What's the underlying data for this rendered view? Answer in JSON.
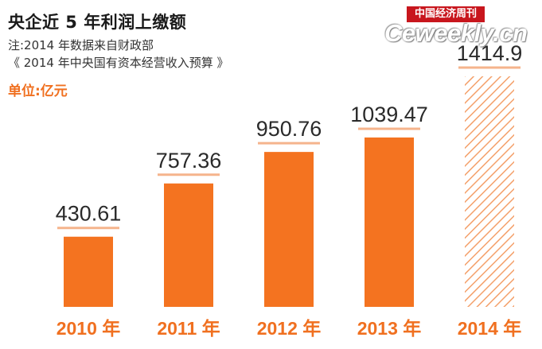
{
  "header": {
    "title": "央企近 5 年利润上缴额",
    "note_line1": "注:2014 年数据来自财政部",
    "note_line2": "《 2014 年中央国有资本经营收入预算 》",
    "unit": "单位:亿元"
  },
  "logo": {
    "cn_text": "中国经济周刊",
    "en_text": "Ceweekly.cn"
  },
  "colors": {
    "bar": "#f47320",
    "bar_budget": "#f4a06a",
    "guide_line": "#f5b48c",
    "category": "#f07020",
    "category_budget": "#f6a56f"
  },
  "chart_data": {
    "type": "bar",
    "title": "央企近 5 年利润上缴额",
    "ylabel": "亿元",
    "categories": [
      "2010 年",
      "2011 年",
      "2012 年",
      "2013 年",
      "2014 年"
    ],
    "values": [
      430.61,
      757.36,
      950.76,
      1039.47,
      1414.9
    ],
    "value_labels": [
      "430.61",
      "757.36",
      "950.76",
      "1039.47",
      "1414.9"
    ],
    "hatched": [
      false,
      false,
      false,
      false,
      true
    ],
    "ylim": [
      0,
      1414.9
    ],
    "grid": false
  }
}
